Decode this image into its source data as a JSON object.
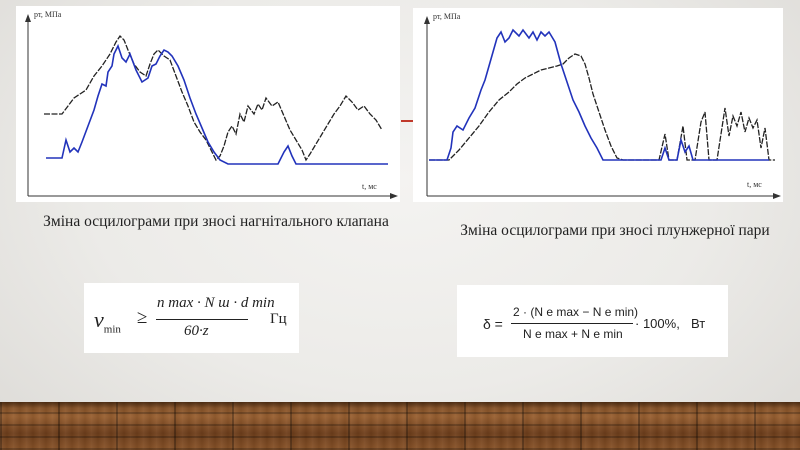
{
  "left_chart": {
    "y_label": "pт, МПа",
    "x_label": "t, мс",
    "caption": "Зміна осцилограми при зносі нагнітального клапана"
  },
  "right_chart": {
    "y_label": "pт, МПа",
    "x_label": "t, мс",
    "caption": "Зміна осцилограми при зносі плунжерної пари"
  },
  "formula_left": {
    "lhs": "ν",
    "lhs_sub": "min",
    "relation": "≥",
    "numerator": "n max · N ш · d min",
    "denominator": "60·z",
    "unit": "Гц"
  },
  "formula_right": {
    "lhs": "δ =",
    "numerator": "2 · (N e max − N e min)",
    "denominator": "N e max + N e min",
    "tail": "· 100%,",
    "unit": "Вт"
  },
  "colors": {
    "curve_blue": "#2233bb",
    "curve_black": "#222222",
    "accent": "#c0392b"
  }
}
